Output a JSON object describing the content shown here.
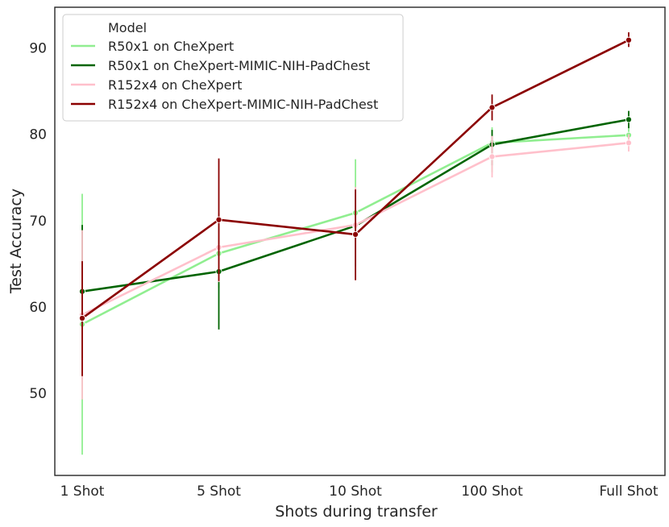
{
  "chart_data": {
    "type": "line",
    "title": "",
    "xlabel": "Shots during transfer",
    "ylabel": "Test Accuracy",
    "categories": [
      "1 Shot",
      "5 Shot",
      "10 Shot",
      "100 Shot",
      "Full Shot"
    ],
    "ylim": [
      40.5,
      94.7
    ],
    "yticks": [
      50,
      60,
      70,
      80,
      90
    ],
    "grid": false,
    "legend": {
      "title": "Model",
      "placement": "top-left"
    },
    "series": [
      {
        "name": "R50x1 on CheXpert",
        "color": "#90ee90",
        "values": [
          58.0,
          66.2,
          70.9,
          79.0,
          79.9
        ],
        "error_low": [
          42.9,
          62.2,
          64.7,
          75.6,
          78.8
        ],
        "error_high": [
          73.1,
          70.2,
          77.1,
          80.8,
          81.0
        ]
      },
      {
        "name": "R50x1 on CheXpert-MIMIC-NIH-PadChest",
        "color": "#006400",
        "values": [
          61.8,
          64.1,
          69.4,
          78.8,
          81.7
        ],
        "error_low": [
          54.1,
          57.4,
          65.1,
          76.4,
          80.7
        ],
        "error_high": [
          69.5,
          70.8,
          73.7,
          80.5,
          82.7
        ]
      },
      {
        "name": "R152x4 on CheXpert",
        "color": "#ffc0cb",
        "values": [
          59.1,
          66.9,
          69.5,
          77.4,
          79.0
        ],
        "error_low": [
          49.3,
          62.9,
          65.1,
          75.0,
          78.0
        ],
        "error_high": [
          68.9,
          70.9,
          73.9,
          79.8,
          80.0
        ]
      },
      {
        "name": "R152x4 on CheXpert-MIMIC-NIH-PadChest",
        "color": "#8b0000",
        "values": [
          58.7,
          70.1,
          68.4,
          83.1,
          90.9
        ],
        "error_low": [
          52.0,
          63.0,
          63.1,
          81.6,
          90.1
        ],
        "error_high": [
          65.3,
          77.2,
          73.6,
          84.6,
          91.8
        ]
      }
    ]
  }
}
